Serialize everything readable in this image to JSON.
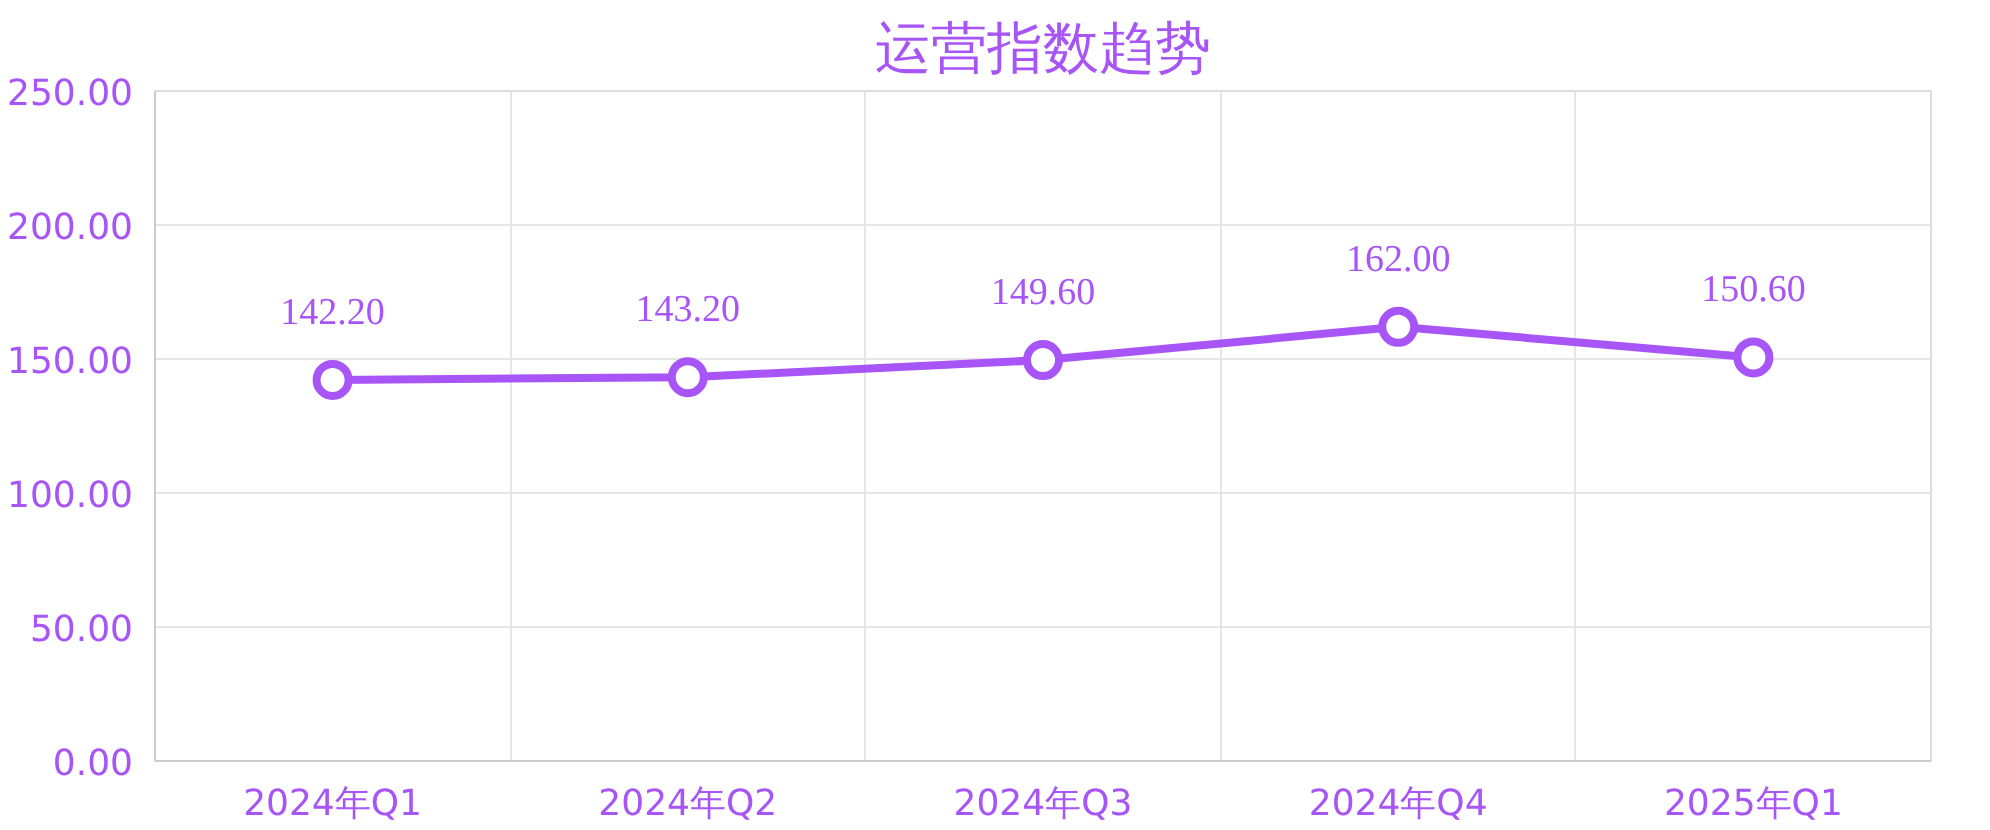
{
  "chart_data": {
    "type": "line",
    "title": "运营指数趋势",
    "categories": [
      "2024年Q1",
      "2024年Q2",
      "2024年Q3",
      "2024年Q4",
      "2025年Q1"
    ],
    "series": [
      {
        "color": "#a855f7",
        "values": [
          142.2,
          143.2,
          149.6,
          162.0,
          150.6
        ],
        "value_labels": [
          "142.20",
          "143.20",
          "149.60",
          "162.00",
          "150.60"
        ]
      }
    ],
    "ylim": [
      0,
      250
    ],
    "yticks": [
      {
        "value": 0,
        "label": "0.00"
      },
      {
        "value": 50,
        "label": "50.00"
      },
      {
        "value": 100,
        "label": "100.00"
      },
      {
        "value": 150,
        "label": "150.00"
      },
      {
        "value": 200,
        "label": "200.00"
      },
      {
        "value": 250,
        "label": "250.00"
      }
    ],
    "grid": true,
    "marker": "circle",
    "line_style": "solid"
  }
}
